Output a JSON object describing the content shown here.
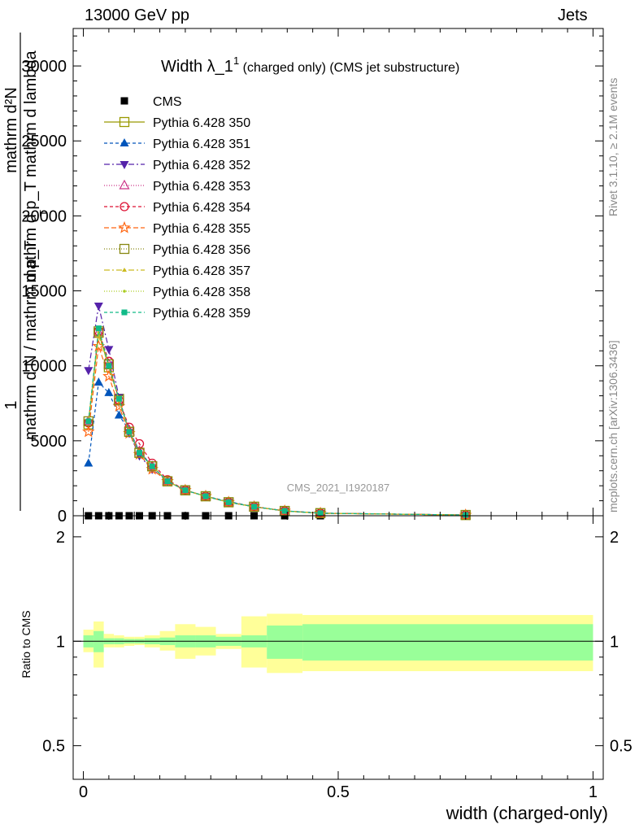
{
  "header": {
    "left": "13000 GeV pp",
    "right": "Jets"
  },
  "side_labels": {
    "rivet": "Rivet 3.1.10, ≥ 2.1M events",
    "mcplots": "mcplots.cern.ch [arXiv:1306.3436]"
  },
  "watermark": "CMS_2021_I1920187",
  "colors": {
    "band_inner": "#99ff99",
    "band_outer": "#ffff99"
  },
  "chart_data": {
    "type": "scatter",
    "title_main": "Width λ_1",
    "title_sup": "1",
    "title_rest": "(charged only) (CMS jet substructure)",
    "ylabel_lines": [
      "1",
      "mathrm d N / mathrm d p_T",
      "mathrm d p_T mathrm d lambda",
      "mathrm d²N"
    ],
    "ylabel_sub": "T",
    "xlabel": "width (charged-only)",
    "ratio_ylabel": "Ratio to CMS",
    "xlim": [
      -0.02,
      1.02
    ],
    "ylim": [
      0,
      32500
    ],
    "ratio_ylim": [
      0.4,
      2.3
    ],
    "x_ticks": [
      0,
      0.5,
      1
    ],
    "x_tick_labels": [
      "0",
      "0.5",
      "1"
    ],
    "y_ticks": [
      0,
      5000,
      10000,
      15000,
      20000,
      25000,
      30000
    ],
    "y_tick_labels": [
      "0",
      "5000",
      "10000",
      "15000",
      "20000",
      "25000",
      "30000"
    ],
    "ratio_ticks": [
      0.5,
      1,
      2
    ],
    "ratio_tick_labels": [
      "0.5",
      "1",
      "2"
    ],
    "bin_edges": [
      0,
      0.02,
      0.04,
      0.06,
      0.08,
      0.1,
      0.12,
      0.15,
      0.18,
      0.22,
      0.26,
      0.31,
      0.36,
      0.43,
      0.5,
      1.0
    ],
    "x": [
      0.01,
      0.03,
      0.05,
      0.07,
      0.09,
      0.11,
      0.135,
      0.165,
      0.2,
      0.24,
      0.285,
      0.335,
      0.395,
      0.465,
      0.75
    ],
    "cms": [
      0,
      0,
      0,
      0,
      0,
      0,
      0,
      0,
      0,
      0,
      0,
      0,
      0,
      0,
      0
    ],
    "ratio_band_inner": [
      [
        0.96,
        1.04
      ],
      [
        0.93,
        1.07
      ],
      [
        0.98,
        1.02
      ],
      [
        0.98,
        1.02
      ],
      [
        0.985,
        1.015
      ],
      [
        0.985,
        1.015
      ],
      [
        0.98,
        1.02
      ],
      [
        0.975,
        1.025
      ],
      [
        0.96,
        1.04
      ],
      [
        0.96,
        1.04
      ],
      [
        0.97,
        1.03
      ],
      [
        0.96,
        1.04
      ],
      [
        0.89,
        1.11
      ],
      [
        0.88,
        1.12
      ],
      [
        0.88,
        1.12
      ]
    ],
    "ratio_band_outer": [
      [
        0.93,
        1.08
      ],
      [
        0.84,
        1.14
      ],
      [
        0.96,
        1.05
      ],
      [
        0.96,
        1.04
      ],
      [
        0.97,
        1.03
      ],
      [
        0.975,
        1.03
      ],
      [
        0.96,
        1.04
      ],
      [
        0.94,
        1.07
      ],
      [
        0.89,
        1.12
      ],
      [
        0.91,
        1.1
      ],
      [
        0.95,
        1.05
      ],
      [
        0.84,
        1.18
      ],
      [
        0.81,
        1.2
      ],
      [
        0.82,
        1.19
      ],
      [
        0.82,
        1.19
      ]
    ],
    "series": [
      {
        "name": "CMS",
        "color": "#000000",
        "marker": "square-filled",
        "dash": "",
        "legend_line": false,
        "values": [
          0,
          0,
          0,
          0,
          0,
          0,
          0,
          0,
          0,
          0,
          0,
          0,
          0,
          0,
          0
        ]
      },
      {
        "name": "Pythia 6.428 350",
        "color": "#999900",
        "marker": "square-open",
        "dash": "",
        "legend_line": true,
        "values": [
          6100,
          12200,
          9900,
          7800,
          5600,
          4200,
          3300,
          2300,
          1700,
          1300,
          900,
          600,
          320,
          170,
          50
        ]
      },
      {
        "name": "Pythia 6.428 351",
        "color": "#0055bb",
        "marker": "triangle-up-filled",
        "dash": "4,3",
        "legend_line": true,
        "values": [
          3500,
          8900,
          8200,
          6700,
          5700,
          4300,
          3300,
          2300,
          1700,
          1300,
          950,
          600,
          330,
          180,
          50
        ]
      },
      {
        "name": "Pythia 6.428 352",
        "color": "#5522aa",
        "marker": "triangle-down-filled",
        "dash": "7,3,2,3",
        "legend_line": true,
        "values": [
          9700,
          14000,
          11100,
          7900,
          5500,
          4000,
          3100,
          2300,
          1700,
          1300,
          900,
          600,
          320,
          170,
          50
        ]
      },
      {
        "name": "Pythia 6.428 353",
        "color": "#cc3388",
        "marker": "triangle-up-open",
        "dash": "1,2",
        "legend_line": true,
        "values": [
          6300,
          12200,
          10100,
          7600,
          5700,
          4300,
          3300,
          2300,
          1700,
          1300,
          900,
          600,
          320,
          170,
          50
        ]
      },
      {
        "name": "Pythia 6.428 354",
        "color": "#dd1133",
        "marker": "circle-open",
        "dash": "4,3",
        "legend_line": true,
        "values": [
          6200,
          12300,
          10300,
          7700,
          5900,
          4800,
          3500,
          2400,
          1700,
          1300,
          900,
          600,
          320,
          170,
          50
        ]
      },
      {
        "name": "Pythia 6.428 355",
        "color": "#ff6611",
        "marker": "star-open",
        "dash": "6,3",
        "legend_line": true,
        "values": [
          5600,
          11300,
          9300,
          7300,
          5500,
          4100,
          3100,
          2300,
          1700,
          1300,
          900,
          600,
          320,
          170,
          50
        ]
      },
      {
        "name": "Pythia 6.428 356",
        "color": "#888811",
        "marker": "square-open",
        "dash": "1,2",
        "legend_line": true,
        "values": [
          6300,
          12300,
          10100,
          7700,
          5600,
          4200,
          3300,
          2300,
          1700,
          1300,
          900,
          600,
          320,
          170,
          50
        ]
      },
      {
        "name": "Pythia 6.428 357",
        "color": "#ccbb22",
        "marker": "tri-small",
        "dash": "7,3,2,3",
        "legend_line": true,
        "values": [
          6300,
          12000,
          10000,
          7700,
          5600,
          4200,
          3300,
          2300,
          1700,
          1300,
          900,
          600,
          320,
          170,
          50
        ]
      },
      {
        "name": "Pythia 6.428 358",
        "color": "#aacc22",
        "marker": "dot-small",
        "dash": "1,2",
        "legend_line": true,
        "values": [
          6300,
          12200,
          10000,
          7700,
          5600,
          4200,
          3300,
          2300,
          1700,
          1300,
          900,
          600,
          320,
          170,
          50
        ]
      },
      {
        "name": "Pythia 6.428 359",
        "color": "#11bb88",
        "marker": "square-filled-small",
        "dash": "4,3",
        "legend_line": true,
        "values": [
          6300,
          12500,
          10000,
          7800,
          5600,
          4200,
          3300,
          2300,
          1700,
          1300,
          900,
          600,
          320,
          170,
          50
        ]
      }
    ]
  }
}
